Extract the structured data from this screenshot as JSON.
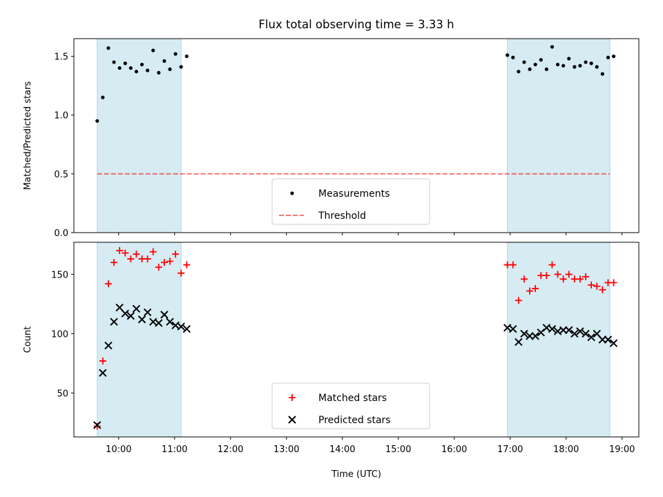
{
  "chart_data": {
    "type": "scatter",
    "title": "Flux total observing time = 3.33 h",
    "xlabel": "Time (UTC)",
    "x_unit": "hours UTC (decimal)",
    "xlim": [
      "09:12",
      "19:18"
    ],
    "x_ticks": [
      "10:00",
      "11:00",
      "12:00",
      "13:00",
      "14:00",
      "15:00",
      "16:00",
      "17:00",
      "18:00",
      "19:00"
    ],
    "colors": {
      "shade": "#add8e6",
      "measurements": "#000000",
      "threshold": "#ff0000",
      "matched": "#ff0000",
      "predicted": "#000000"
    },
    "observing_windows": [
      {
        "start": "09:37",
        "end": "11:07"
      },
      {
        "start": "16:57",
        "end": "18:47"
      }
    ],
    "panels": [
      {
        "id": "ratio",
        "ylabel": "Matched/Predicted stars",
        "ylim": [
          0,
          1.65
        ],
        "y_ticks": [
          "0.0",
          "0.5",
          "1.0",
          "1.5"
        ],
        "legend_location": "lower center",
        "legend": [
          "Measurements",
          "Threshold"
        ],
        "threshold": {
          "y": 0.5,
          "x_start": "09:37",
          "x_end": "18:47"
        },
        "series": [
          {
            "name": "Measurements",
            "marker": "dot",
            "x": [
              "09:37",
              "09:43",
              "09:49",
              "09:55",
              "10:01",
              "10:07",
              "10:13",
              "10:19",
              "10:25",
              "10:31",
              "10:37",
              "10:43",
              "10:49",
              "10:55",
              "11:01",
              "11:07",
              "11:13",
              "16:57",
              "17:03",
              "17:09",
              "17:15",
              "17:21",
              "17:27",
              "17:33",
              "17:39",
              "17:45",
              "17:51",
              "17:57",
              "18:03",
              "18:09",
              "18:15",
              "18:21",
              "18:27",
              "18:33",
              "18:39",
              "18:45",
              "18:51"
            ],
            "y": [
              0.95,
              1.15,
              1.57,
              1.45,
              1.4,
              1.44,
              1.4,
              1.37,
              1.43,
              1.38,
              1.55,
              1.36,
              1.46,
              1.39,
              1.52,
              1.41,
              1.5,
              1.51,
              1.49,
              1.37,
              1.45,
              1.39,
              1.43,
              1.47,
              1.39,
              1.58,
              1.43,
              1.42,
              1.48,
              1.41,
              1.42,
              1.45,
              1.44,
              1.41,
              1.35,
              1.49,
              1.5
            ]
          }
        ]
      },
      {
        "id": "count",
        "ylabel": "Count",
        "ylim": [
          13,
          177
        ],
        "y_ticks": [
          "50",
          "100",
          "150"
        ],
        "legend_location": "lower center",
        "legend": [
          "Matched stars",
          "Predicted stars"
        ],
        "series": [
          {
            "name": "Matched stars",
            "marker": "plus",
            "x": [
              "09:37",
              "09:43",
              "09:49",
              "09:55",
              "10:01",
              "10:07",
              "10:13",
              "10:19",
              "10:25",
              "10:31",
              "10:37",
              "10:43",
              "10:49",
              "10:55",
              "11:01",
              "11:07",
              "11:13",
              "16:57",
              "17:03",
              "17:09",
              "17:15",
              "17:21",
              "17:27",
              "17:33",
              "17:39",
              "17:45",
              "17:51",
              "17:57",
              "18:03",
              "18:09",
              "18:15",
              "18:21",
              "18:27",
              "18:33",
              "18:39",
              "18:45",
              "18:51"
            ],
            "y": [
              22,
              77,
              142,
              160,
              170,
              168,
              163,
              167,
              163,
              163,
              169,
              156,
              160,
              161,
              167,
              151,
              158,
              158,
              158,
              128,
              146,
              136,
              138,
              149,
              149,
              158,
              150,
              146,
              150,
              146,
              146,
              148,
              141,
              140,
              137,
              143,
              143
            ]
          },
          {
            "name": "Predicted stars",
            "marker": "x",
            "x": [
              "09:37",
              "09:43",
              "09:49",
              "09:55",
              "10:01",
              "10:07",
              "10:13",
              "10:19",
              "10:25",
              "10:31",
              "10:37",
              "10:43",
              "10:49",
              "10:55",
              "11:01",
              "11:07",
              "11:13",
              "16:57",
              "17:03",
              "17:09",
              "17:15",
              "17:21",
              "17:27",
              "17:33",
              "17:39",
              "17:45",
              "17:51",
              "17:57",
              "18:03",
              "18:09",
              "18:15",
              "18:21",
              "18:27",
              "18:33",
              "18:39",
              "18:45",
              "18:51"
            ],
            "y": [
              23,
              67,
              90,
              110,
              122,
              117,
              115,
              121,
              112,
              118,
              110,
              109,
              116,
              110,
              107,
              106,
              104,
              105,
              104,
              93,
              100,
              98,
              98,
              101,
              105,
              104,
              102,
              103,
              103,
              100,
              102,
              100,
              97,
              100,
              95,
              95,
              92
            ]
          }
        ]
      }
    ]
  }
}
